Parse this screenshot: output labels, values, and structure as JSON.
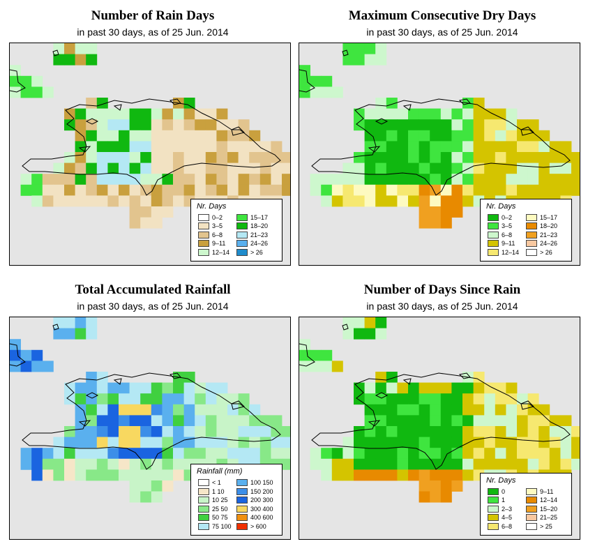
{
  "panels": [
    {
      "title": "Number of Rain Days",
      "subtitle": "in past 30 days, as of  25 Jun. 2014",
      "legend_title": "Nr. Days",
      "legend_items": [
        {
          "label": "0–2",
          "color": "#ffffff"
        },
        {
          "label": "3–5",
          "color": "#f2e2c2"
        },
        {
          "label": "6–8",
          "color": "#e2c48e"
        },
        {
          "label": "9–11",
          "color": "#c9a03e"
        },
        {
          "label": "12–14",
          "color": "#cdf7cd"
        },
        {
          "label": "15–17",
          "color": "#3fe53f"
        },
        {
          "label": "18–20",
          "color": "#10b810"
        },
        {
          "label": "21–23",
          "color": "#b4e8f4"
        },
        {
          "label": "24–26",
          "color": "#5ab0ee"
        },
        {
          "label": "> 26",
          "color": "#1f8ccc"
        }
      ]
    },
    {
      "title": "Maximum Consecutive Dry Days",
      "subtitle": "in past 30 days, as of  25 Jun. 2014",
      "legend_title": "Nr. Days",
      "legend_items": [
        {
          "label": "0–2",
          "color": "#10b810"
        },
        {
          "label": "3–5",
          "color": "#3fe53f"
        },
        {
          "label": "6–8",
          "color": "#cdf7cd"
        },
        {
          "label": "9–11",
          "color": "#d4c400"
        },
        {
          "label": "12–14",
          "color": "#f6e870"
        },
        {
          "label": "15–17",
          "color": "#fdfac0"
        },
        {
          "label": "18–20",
          "color": "#e88a00"
        },
        {
          "label": "21–23",
          "color": "#f0a020"
        },
        {
          "label": "24–26",
          "color": "#f8c8a0"
        },
        {
          "label": "> 26",
          "color": "#ffffff"
        }
      ]
    },
    {
      "title": "Total Accumulated Rainfall",
      "subtitle": "in past 30 days, as of  25 Jun. 2014",
      "legend_title": "Rainfall (mm)",
      "legend_items": [
        {
          "label": "< 1",
          "color": "#ffffff"
        },
        {
          "label": "1    10",
          "color": "#f6e6c8"
        },
        {
          "label": "10    25",
          "color": "#c8f4c8"
        },
        {
          "label": "25    50",
          "color": "#88e888"
        },
        {
          "label": "50    75",
          "color": "#40d040"
        },
        {
          "label": "75  100",
          "color": "#b4e8f4"
        },
        {
          "label": "100  150",
          "color": "#5ab0ee"
        },
        {
          "label": "150  200",
          "color": "#3c8ee8"
        },
        {
          "label": "200  300",
          "color": "#1a64e0"
        },
        {
          "label": "300  400",
          "color": "#f8d860"
        },
        {
          "label": "400  600",
          "color": "#f09010"
        },
        {
          "label": "> 600",
          "color": "#f03000"
        }
      ]
    },
    {
      "title": "Number of Days Since Rain",
      "subtitle": "in past 30 days, as of  25 Jun. 2014",
      "legend_title": "Nr. Days",
      "legend_items": [
        {
          "label": "0",
          "color": "#10b810"
        },
        {
          "label": "1",
          "color": "#3fe53f"
        },
        {
          "label": "2–3",
          "color": "#cdf7cd"
        },
        {
          "label": "4–5",
          "color": "#d4c400"
        },
        {
          "label": "6–8",
          "color": "#f6e870"
        },
        {
          "label": "9–11",
          "color": "#fdfac0"
        },
        {
          "label": "12–14",
          "color": "#e88a00"
        },
        {
          "label": "15–20",
          "color": "#f0a020"
        },
        {
          "label": "21–25",
          "color": "#f8c8a0"
        },
        {
          "label": "> 25",
          "color": "#ffffff"
        }
      ]
    }
  ]
}
